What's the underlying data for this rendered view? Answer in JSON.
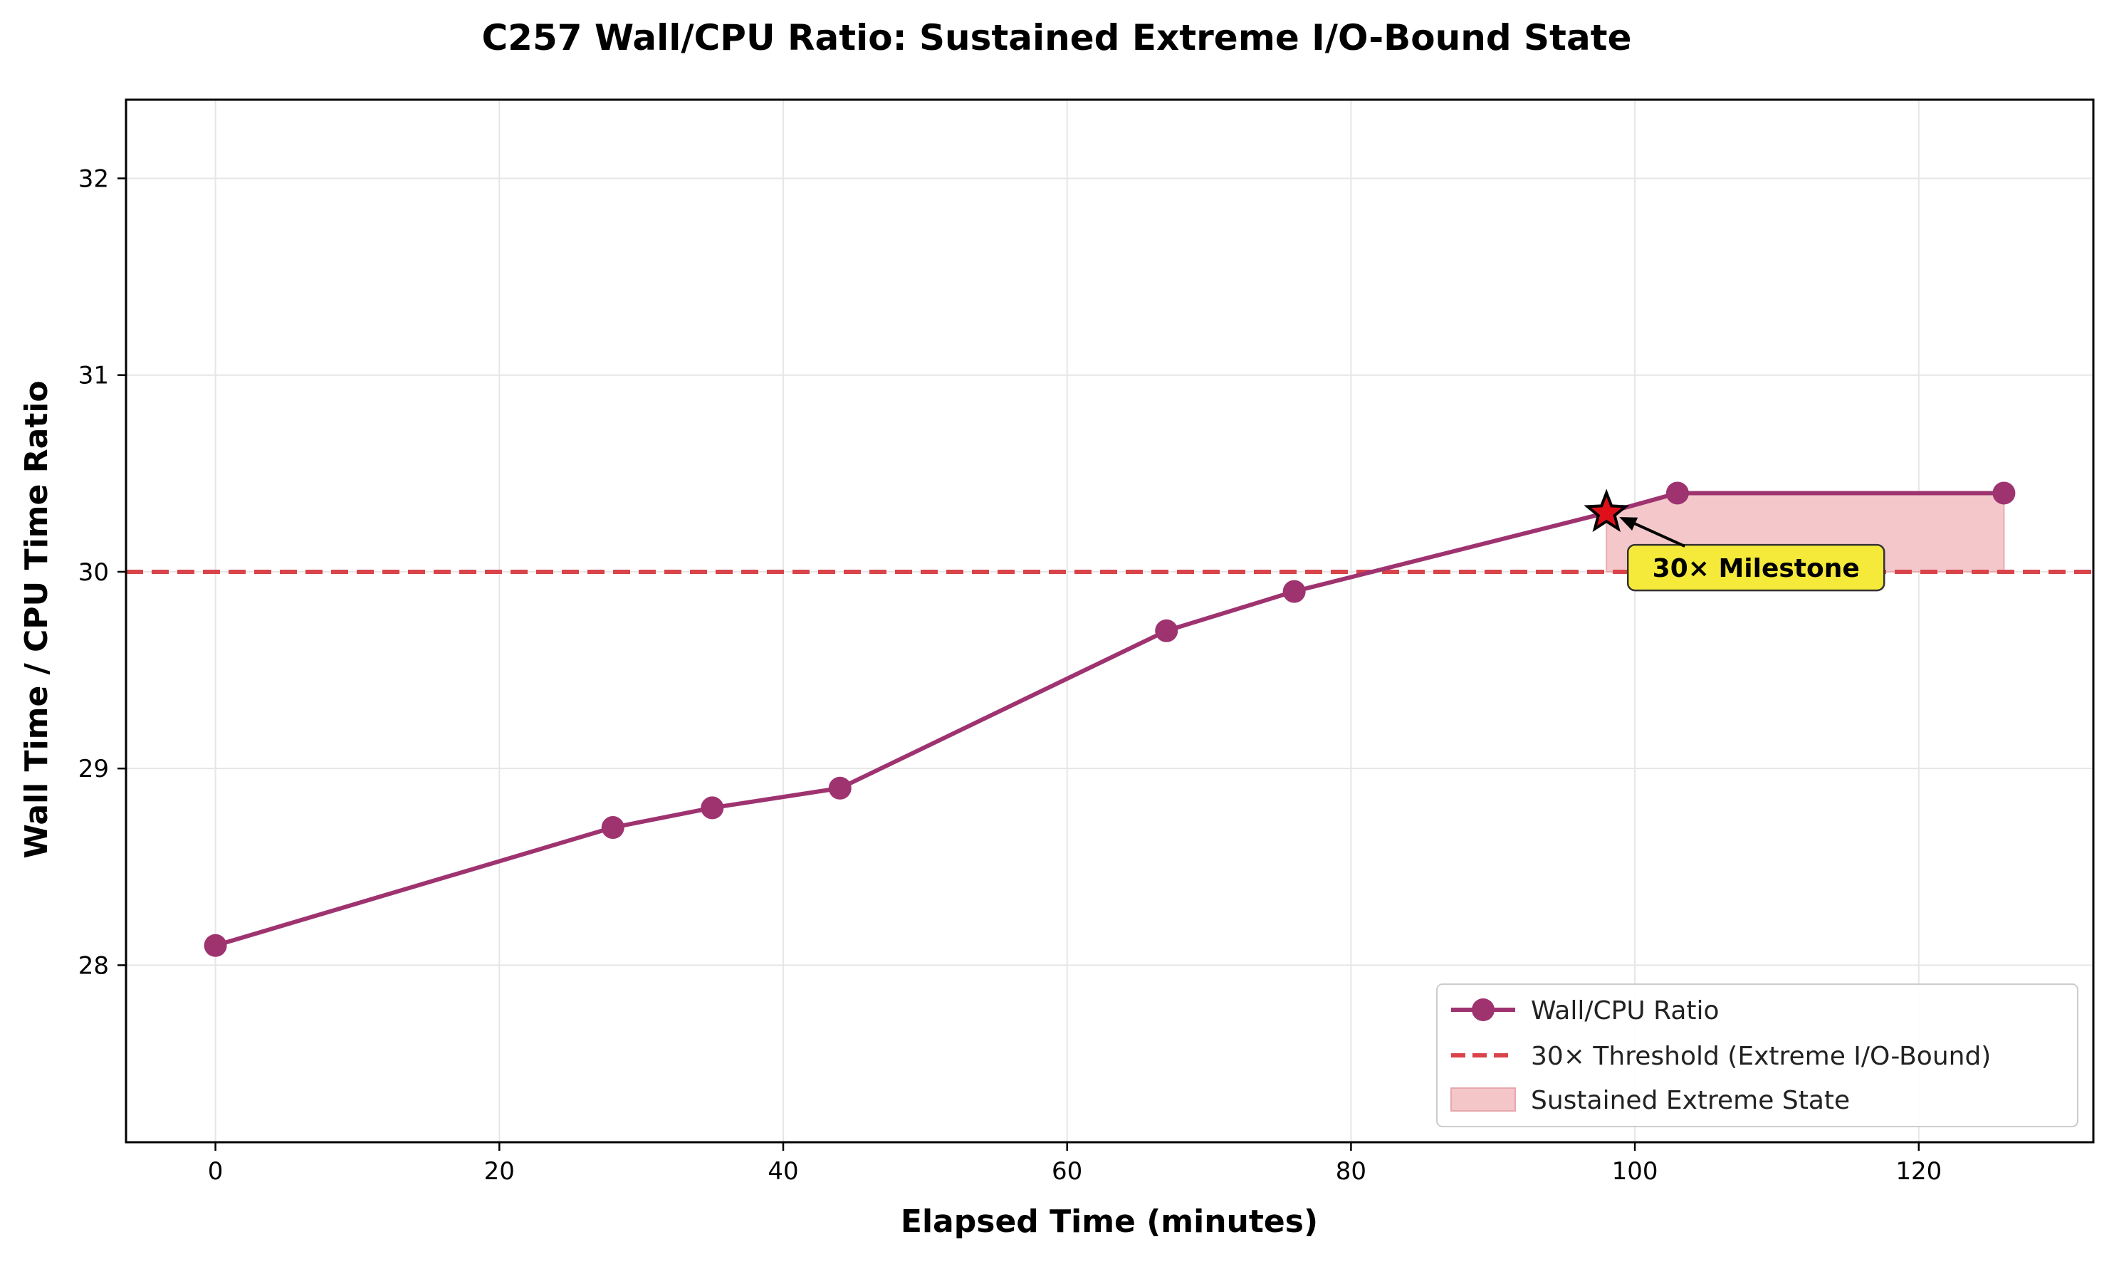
{
  "chart_data": {
    "type": "line",
    "title": "C257 Wall/CPU Ratio: Sustained Extreme I/O-Bound State",
    "xlabel": "Elapsed Time (minutes)",
    "ylabel": "Wall Time / CPU Time Ratio",
    "xlim": [
      -6.3,
      132.3
    ],
    "ylim": [
      27.1,
      32.4
    ],
    "x_ticks": [
      0,
      20,
      40,
      60,
      80,
      100,
      120
    ],
    "y_ticks": [
      28,
      29,
      30,
      31,
      32
    ],
    "grid": true,
    "legend_position": "lower-right",
    "series": [
      {
        "name": "Wall/CPU Ratio",
        "color": "#9e3370",
        "marker": "circle",
        "x": [
          0,
          28,
          35,
          44,
          67,
          76,
          98,
          103,
          126
        ],
        "y": [
          28.1,
          28.7,
          28.8,
          28.9,
          29.7,
          29.9,
          30.3,
          30.4,
          30.4
        ]
      }
    ],
    "threshold": {
      "name": "30× Threshold (Extreme I/O-Bound)",
      "y": 30,
      "color": "#d9434a",
      "style": "dashed"
    },
    "shaded_region": {
      "name": "Sustained Extreme State",
      "x": [
        98,
        103,
        126
      ],
      "y_low": 30,
      "y_high": [
        30.3,
        30.4,
        30.4
      ],
      "color": "#f4c6c8"
    },
    "annotation": {
      "text": "30× Milestone",
      "point": [
        98,
        30.3
      ],
      "marker": "star",
      "marker_color": "#e0101b",
      "box_color": "#f5ea3a"
    }
  }
}
